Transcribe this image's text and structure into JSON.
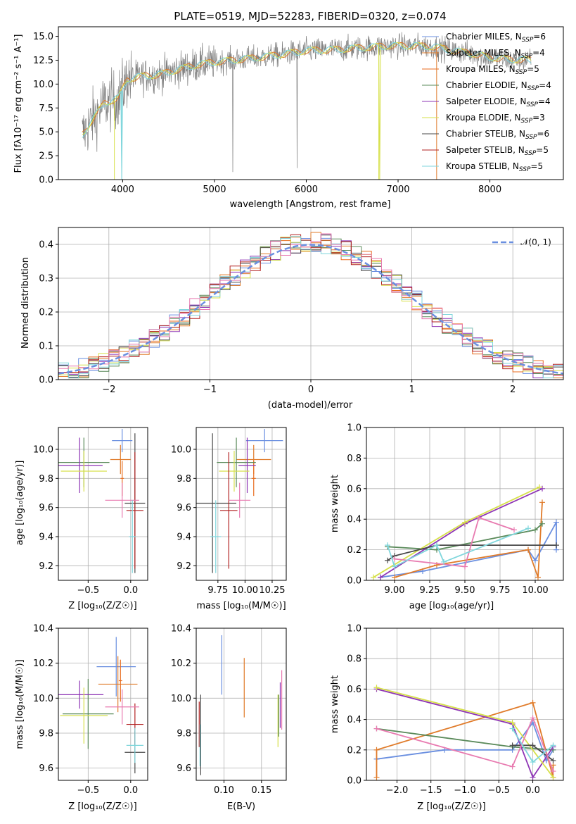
{
  "colors": {
    "Chabrier MILES": "#6a8fe0",
    "Salpeter MILES": "#e07b2a",
    "Kroupa MILES": "#e86d1f",
    "Chabrier ELODIE": "#5a8a5a",
    "Salpeter ELODIE": "#8e35b5",
    "Kroupa ELODIE": "#d6e04a",
    "Chabrier STELIB": "#4a4a4a",
    "Salpeter STELIB": "#b22222",
    "Kroupa STELIB": "#7fd6dc",
    "pink": "#e87ab0",
    "data_gray": "#808080",
    "gaussian": "#6a8fe0"
  },
  "chart_data": [
    {
      "id": "spectrum",
      "type": "line",
      "title": "PLATE=0519, MJD=52283, FIBERID=0320, z=0.074",
      "xlabel": "wavelength [Angstrom, rest frame]",
      "ylabel": "Flux [fλ10⁻¹⁷ erg cm⁻² s⁻¹ A⁻¹]",
      "xlim": [
        3300,
        8800
      ],
      "ylim": [
        0,
        16
      ],
      "xticks": [
        "4000",
        "5000",
        "6000",
        "7000",
        "8000"
      ],
      "yticks": [
        "0.0",
        "2.5",
        "5.0",
        "7.5",
        "10.0",
        "12.5",
        "15.0"
      ],
      "legend_position": "right",
      "legend": [
        {
          "label": "Chabrier MILES, N",
          "sub": "SSP",
          "suffix": "=6"
        },
        {
          "label": "Salpeter MILES, N",
          "sub": "SSP",
          "suffix": "=4"
        },
        {
          "label": "Kroupa MILES, N",
          "sub": "SSP",
          "suffix": "=5"
        },
        {
          "label": "Chabrier ELODIE, N",
          "sub": "SSP",
          "suffix": "=4"
        },
        {
          "label": "Salpeter ELODIE, N",
          "sub": "SSP",
          "suffix": "=4"
        },
        {
          "label": "Kroupa ELODIE, N",
          "sub": "SSP",
          "suffix": "=3"
        },
        {
          "label": "Chabrier STELIB, N",
          "sub": "SSP",
          "suffix": "=6"
        },
        {
          "label": "Salpeter STELIB, N",
          "sub": "SSP",
          "suffix": "=5"
        },
        {
          "label": "Kroupa STELIB, N",
          "sub": "SSP",
          "suffix": "=5"
        }
      ],
      "model_continuum": {
        "x": [
          3550,
          3650,
          3800,
          3950,
          4050,
          4200,
          4400,
          4600,
          4800,
          5000,
          5200,
          5500,
          5800,
          6000,
          6300,
          6600,
          6900,
          7200,
          7400,
          7600,
          7800,
          8000,
          8200,
          8400
        ],
        "y": [
          4.5,
          6.0,
          8.0,
          8.5,
          10.5,
          10.8,
          11.0,
          11.5,
          12.0,
          12.3,
          12.5,
          12.8,
          13.2,
          13.5,
          13.6,
          13.8,
          14.0,
          14.0,
          13.9,
          13.5,
          13.2,
          12.8,
          12.6,
          12.5
        ]
      }
    },
    {
      "id": "residuals",
      "type": "histogram",
      "xlabel": "(data-model)/error",
      "ylabel": "Normed distribution",
      "xlim": [
        -2.5,
        2.5
      ],
      "ylim": [
        0,
        0.45
      ],
      "xticks": [
        "−2",
        "−1",
        "0",
        "1",
        "2"
      ],
      "yticks": [
        "0.0",
        "0.1",
        "0.2",
        "0.3",
        "0.4"
      ],
      "grid": true,
      "legend_position": "top-right",
      "gaussian_label": "𝒩(0, 1)"
    },
    {
      "id": "age_vs_Z",
      "type": "errorbar",
      "xlabel": "Z [log₁₀(Z/Z☉)]",
      "ylabel": "age  [log₁₀(age/yr)]",
      "xlim": [
        -0.85,
        0.2
      ],
      "ylim": [
        9.1,
        10.15
      ],
      "xticks": [
        "−0.5",
        "0.0"
      ],
      "yticks": [
        "9.2",
        "9.4",
        "9.6",
        "9.8",
        "10.0"
      ],
      "points": [
        {
          "series": "Chabrier MILES",
          "x": -0.1,
          "y": 10.06,
          "xerr": 0.12,
          "yerr": 0.08
        },
        {
          "series": "Salpeter MILES",
          "x": -0.12,
          "y": 9.93,
          "xerr": 0.12,
          "yerr": 0.1
        },
        {
          "series": "Kroupa MILES",
          "x": -0.1,
          "y": 9.8,
          "xerr": 0.02,
          "yerr": 0.12
        },
        {
          "series": "Chabrier ELODIE",
          "x": -0.55,
          "y": 9.91,
          "xerr": 0.3,
          "yerr": 0.17
        },
        {
          "series": "Salpeter ELODIE",
          "x": -0.6,
          "y": 9.89,
          "xerr": 0.27,
          "yerr": 0.19
        },
        {
          "series": "Kroupa ELODIE",
          "x": -0.55,
          "y": 9.85,
          "xerr": 0.27,
          "yerr": 0.14
        },
        {
          "series": "Chabrier STELIB",
          "x": 0.05,
          "y": 9.63,
          "xerr": 0.12,
          "yerr": 0.48
        },
        {
          "series": "Salpeter STELIB",
          "x": 0.05,
          "y": 9.58,
          "xerr": 0.1,
          "yerr": 0.4
        },
        {
          "series": "pink",
          "x": -0.1,
          "y": 9.65,
          "xerr": 0.2,
          "yerr": 0.12
        },
        {
          "series": "Kroupa STELIB",
          "x": 0.02,
          "y": 9.4,
          "xerr": 0.04,
          "yerr": 0.25
        }
      ]
    },
    {
      "id": "age_vs_mass",
      "type": "errorbar",
      "xlabel": "mass [log₁₀(M/M☉)]",
      "ylabel": "",
      "xlim": [
        9.55,
        10.38
      ],
      "ylim": [
        9.1,
        10.15
      ],
      "xticks": [
        "9.75",
        "10.00",
        "10.25"
      ],
      "yticks": [
        "9.2",
        "9.4",
        "9.6",
        "9.8",
        "10.0"
      ],
      "points": [
        {
          "series": "Chabrier MILES",
          "x": 10.18,
          "y": 10.06,
          "xerr": 0.17,
          "yerr": 0.08
        },
        {
          "series": "Salpeter MILES",
          "x": 10.08,
          "y": 9.93,
          "xerr": 0.16,
          "yerr": 0.1
        },
        {
          "series": "Kroupa MILES",
          "x": 10.08,
          "y": 9.8,
          "xerr": 0.02,
          "yerr": 0.12
        },
        {
          "series": "Chabrier ELODIE",
          "x": 9.92,
          "y": 9.91,
          "xerr": 0.18,
          "yerr": 0.17
        },
        {
          "series": "Salpeter ELODIE",
          "x": 10.02,
          "y": 9.89,
          "xerr": 0.08,
          "yerr": 0.19
        },
        {
          "series": "Kroupa ELODIE",
          "x": 9.9,
          "y": 9.85,
          "xerr": 0.14,
          "yerr": 0.14
        },
        {
          "series": "Chabrier STELIB",
          "x": 9.7,
          "y": 9.63,
          "xerr": 0.22,
          "yerr": 0.48
        },
        {
          "series": "Salpeter STELIB",
          "x": 9.85,
          "y": 9.58,
          "xerr": 0.08,
          "yerr": 0.4
        },
        {
          "series": "pink",
          "x": 9.95,
          "y": 9.65,
          "xerr": 0.1,
          "yerr": 0.12
        },
        {
          "series": "Kroupa STELIB",
          "x": 9.73,
          "y": 9.4,
          "xerr": 0.05,
          "yerr": 0.25
        }
      ]
    },
    {
      "id": "weight_vs_age",
      "type": "line",
      "xlabel": "age  [log₁₀(age/yr)]",
      "ylabel": "mass weight",
      "xlim": [
        8.8,
        10.2
      ],
      "ylim": [
        0,
        1.0
      ],
      "xticks": [
        "9.00",
        "9.25",
        "9.50",
        "9.75",
        "10.00"
      ],
      "yticks": [
        "0.0",
        "0.2",
        "0.4",
        "0.6",
        "0.8",
        "1.0"
      ],
      "grid": true,
      "series": [
        {
          "name": "Chabrier MILES",
          "x": [
            8.9,
            9.2,
            9.95,
            10.0,
            10.15,
            10.15
          ],
          "y": [
            0.02,
            0.06,
            0.2,
            0.13,
            0.38,
            0.2
          ]
        },
        {
          "name": "Salpeter MILES",
          "x": [
            9.0,
            9.3,
            9.95,
            10.02,
            10.05
          ],
          "y": [
            0.02,
            0.1,
            0.2,
            0.02,
            0.51
          ]
        },
        {
          "name": "Chabrier ELODIE",
          "x": [
            8.95,
            9.3,
            10.0,
            10.05
          ],
          "y": [
            0.22,
            0.2,
            0.33,
            0.37
          ]
        },
        {
          "name": "Salpeter ELODIE",
          "x": [
            8.9,
            9.5,
            10.05
          ],
          "y": [
            0.02,
            0.37,
            0.6
          ]
        },
        {
          "name": "Kroupa ELODIE",
          "x": [
            8.85,
            9.5,
            10.03
          ],
          "y": [
            0.02,
            0.38,
            0.61
          ]
        },
        {
          "name": "Chabrier STELIB",
          "x": [
            8.95,
            9.0,
            9.3,
            10.15
          ],
          "y": [
            0.13,
            0.16,
            0.23,
            0.23
          ]
        },
        {
          "name": "pink",
          "x": [
            9.0,
            9.5,
            9.6,
            9.85
          ],
          "y": [
            0.14,
            0.09,
            0.41,
            0.33
          ]
        },
        {
          "name": "Kroupa STELIB",
          "x": [
            8.95,
            9.0,
            9.3,
            9.35,
            9.95
          ],
          "y": [
            0.23,
            0.09,
            0.23,
            0.12,
            0.34
          ]
        }
      ]
    },
    {
      "id": "mass_vs_Z",
      "type": "errorbar",
      "xlabel": "Z [log₁₀(Z/Z☉)]",
      "ylabel": "mass [log₁₀(M/M☉)]",
      "xlim": [
        -0.85,
        0.2
      ],
      "ylim": [
        9.53,
        10.4
      ],
      "xticks": [
        "−0.5",
        "0.0"
      ],
      "yticks": [
        "9.6",
        "9.8",
        "10.0",
        "10.2",
        "10.4"
      ],
      "points": [
        {
          "series": "Chabrier MILES",
          "x": -0.17,
          "y": 10.18,
          "xerr": 0.23,
          "yerr": 0.17
        },
        {
          "series": "Salpeter MILES",
          "x": -0.15,
          "y": 10.08,
          "xerr": 0.23,
          "yerr": 0.16
        },
        {
          "series": "Kroupa MILES",
          "x": -0.12,
          "y": 10.1,
          "xerr": 0.02,
          "yerr": 0.12
        },
        {
          "series": "Chabrier ELODIE",
          "x": -0.5,
          "y": 9.91,
          "xerr": 0.3,
          "yerr": 0.2
        },
        {
          "series": "Salpeter ELODIE",
          "x": -0.6,
          "y": 10.02,
          "xerr": 0.28,
          "yerr": 0.08
        },
        {
          "series": "Kroupa ELODIE",
          "x": -0.55,
          "y": 9.9,
          "xerr": 0.28,
          "yerr": 0.16
        },
        {
          "series": "Chabrier STELIB",
          "x": 0.05,
          "y": 9.69,
          "xerr": 0.12,
          "yerr": 0.12
        },
        {
          "series": "Salpeter STELIB",
          "x": 0.05,
          "y": 9.85,
          "xerr": 0.1,
          "yerr": 0.12
        },
        {
          "series": "pink",
          "x": -0.1,
          "y": 9.95,
          "xerr": 0.2,
          "yerr": 0.1
        },
        {
          "series": "Kroupa STELIB",
          "x": 0.05,
          "y": 9.73,
          "xerr": 0.1,
          "yerr": 0.1
        }
      ]
    },
    {
      "id": "mass_vs_ebv",
      "type": "errorbar",
      "xlabel": "E(B-V)",
      "ylabel": "",
      "xlim": [
        0.063,
        0.183
      ],
      "ylim": [
        9.53,
        10.4
      ],
      "xticks": [
        "0.10",
        "0.15"
      ],
      "yticks": [
        "9.6",
        "9.8",
        "10.0",
        "10.2",
        "10.4"
      ],
      "points": [
        {
          "series": "Chabrier STELIB",
          "x": 0.069,
          "y": 9.79,
          "xerr": 0,
          "yerr": 0.23
        },
        {
          "series": "Salpeter STELIB",
          "x": 0.067,
          "y": 9.85,
          "xerr": 0,
          "yerr": 0.13
        },
        {
          "series": "Kroupa STELIB",
          "x": 0.068,
          "y": 9.73,
          "xerr": 0,
          "yerr": 0.12
        },
        {
          "series": "Chabrier MILES",
          "x": 0.097,
          "y": 10.19,
          "xerr": 0,
          "yerr": 0.17
        },
        {
          "series": "Salpeter MILES",
          "x": 0.127,
          "y": 10.06,
          "xerr": 0,
          "yerr": 0.17
        },
        {
          "series": "Kroupa ELODIE",
          "x": 0.172,
          "y": 9.87,
          "xerr": 0,
          "yerr": 0.15
        },
        {
          "series": "Chabrier ELODIE",
          "x": 0.173,
          "y": 9.9,
          "xerr": 0,
          "yerr": 0.12
        },
        {
          "series": "Salpeter ELODIE",
          "x": 0.175,
          "y": 9.96,
          "xerr": 0,
          "yerr": 0.13
        },
        {
          "series": "pink",
          "x": 0.177,
          "y": 9.99,
          "xerr": 0,
          "yerr": 0.17
        }
      ]
    },
    {
      "id": "weight_vs_Z",
      "type": "line",
      "xlabel": "Z [log₁₀(Z/Z☉)]",
      "ylabel": "mass weight",
      "xlim": [
        -2.45,
        0.45
      ],
      "ylim": [
        0,
        1.0
      ],
      "xticks": [
        "−2.0",
        "−1.5",
        "−1.0",
        "−0.5",
        "0.0"
      ],
      "yticks": [
        "0.0",
        "0.2",
        "0.4",
        "0.6",
        "0.8",
        "1.0"
      ],
      "grid": true,
      "series": [
        {
          "name": "Chabrier MILES",
          "x": [
            -2.3,
            -1.3,
            -0.3,
            0.0,
            0.2,
            0.3
          ],
          "y": [
            0.14,
            0.2,
            0.2,
            0.38,
            0.13,
            0.2
          ]
        },
        {
          "name": "Salpeter MILES",
          "x": [
            -2.3,
            -2.3,
            0.0,
            0.3,
            0.3
          ],
          "y": [
            0.02,
            0.2,
            0.51,
            0.02,
            0.1
          ]
        },
        {
          "name": "Chabrier ELODIE",
          "x": [
            -2.3,
            -0.3,
            0.3
          ],
          "y": [
            0.34,
            0.22,
            0.2
          ]
        },
        {
          "name": "Salpeter ELODIE",
          "x": [
            -2.3,
            -0.3,
            0.0,
            0.3
          ],
          "y": [
            0.6,
            0.37,
            0.02,
            0.22
          ]
        },
        {
          "name": "Kroupa ELODIE",
          "x": [
            -2.3,
            -0.3,
            0.3
          ],
          "y": [
            0.61,
            0.38,
            0.02
          ]
        },
        {
          "name": "Chabrier STELIB",
          "x": [
            -0.3,
            0.0,
            0.3
          ],
          "y": [
            0.23,
            0.23,
            0.13
          ]
        },
        {
          "name": "pink",
          "x": [
            -2.3,
            -0.3,
            0.0,
            0.3
          ],
          "y": [
            0.34,
            0.09,
            0.41,
            0.06
          ]
        },
        {
          "name": "Kroupa STELIB",
          "x": [
            -0.3,
            0.0,
            0.3
          ],
          "y": [
            0.34,
            0.12,
            0.23
          ]
        }
      ]
    }
  ]
}
